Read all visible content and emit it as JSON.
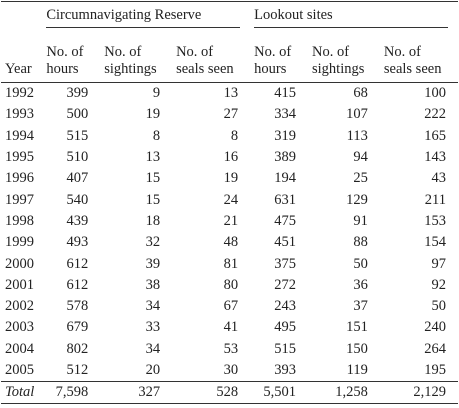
{
  "table": {
    "groups": [
      "Circumnavigating Reserve",
      "Lookout sites"
    ],
    "columns": [
      [
        "Year"
      ],
      [
        "No. of",
        "hours"
      ],
      [
        "No. of",
        "sightings"
      ],
      [
        "No. of",
        "seals seen"
      ],
      [
        "No. of",
        "hours"
      ],
      [
        "No. of",
        "sightings"
      ],
      [
        "No. of",
        "seals seen"
      ]
    ],
    "rows": [
      [
        "1992",
        "399",
        "9",
        "13",
        "415",
        "68",
        "100"
      ],
      [
        "1993",
        "500",
        "19",
        "27",
        "334",
        "107",
        "222"
      ],
      [
        "1994",
        "515",
        "8",
        "8",
        "319",
        "113",
        "165"
      ],
      [
        "1995",
        "510",
        "13",
        "16",
        "389",
        "94",
        "143"
      ],
      [
        "1996",
        "407",
        "15",
        "19",
        "194",
        "25",
        "43"
      ],
      [
        "1997",
        "540",
        "15",
        "24",
        "631",
        "129",
        "211"
      ],
      [
        "1998",
        "439",
        "18",
        "21",
        "475",
        "91",
        "153"
      ],
      [
        "1999",
        "493",
        "32",
        "48",
        "451",
        "88",
        "154"
      ],
      [
        "2000",
        "612",
        "39",
        "81",
        "375",
        "50",
        "97"
      ],
      [
        "2001",
        "612",
        "38",
        "80",
        "272",
        "36",
        "92"
      ],
      [
        "2002",
        "578",
        "34",
        "67",
        "243",
        "37",
        "50"
      ],
      [
        "2003",
        "679",
        "33",
        "41",
        "495",
        "151",
        "240"
      ],
      [
        "2004",
        "802",
        "34",
        "53",
        "515",
        "150",
        "264"
      ],
      [
        "2005",
        "512",
        "20",
        "30",
        "393",
        "119",
        "195"
      ],
      [
        "Total",
        "7,598",
        "327",
        "528",
        "5,501",
        "1,258",
        "2,129"
      ]
    ]
  }
}
